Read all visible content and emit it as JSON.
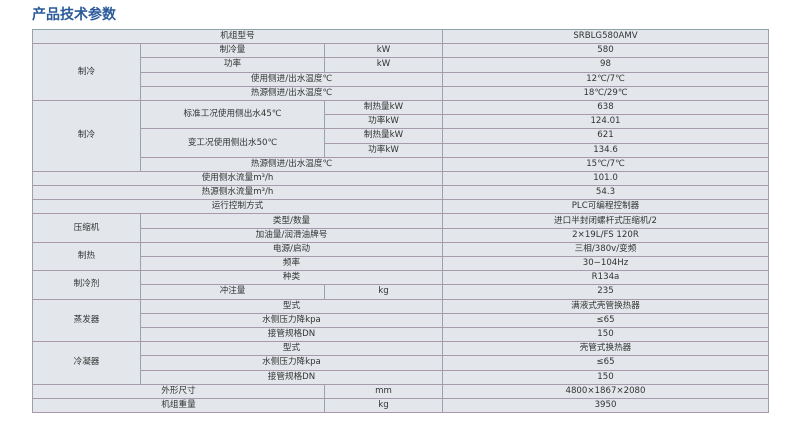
{
  "title": "产品技术参数",
  "rows": {
    "model": {
      "label": "机组型号",
      "value": "SRBLG580AMV"
    },
    "cooling": {
      "group": "制冷",
      "capacity": {
        "label": "制冷量",
        "unit": "kW",
        "value": "580"
      },
      "power": {
        "label": "功率",
        "unit": "kW",
        "value": "98"
      },
      "use_temp": {
        "label": "使用侧进/出水温度℃",
        "value": "12℃/7℃"
      },
      "src_temp": {
        "label": "热源侧进/出水温度℃",
        "value": "18℃/29℃"
      }
    },
    "heating": {
      "group": "制冷",
      "std": {
        "label": "标准工况使用侧出水45℃",
        "cap_label": "制热量kW",
        "cap": "638",
        "pow_label": "功率kW",
        "pow": "124.01"
      },
      "var": {
        "label": "变工况使用侧出水50℃",
        "cap_label": "制热量kW",
        "cap": "621",
        "pow_label": "功率kW",
        "pow": "134.6"
      },
      "src_temp": {
        "label": "热源侧进/出水温度℃",
        "value": "15℃/7℃"
      }
    },
    "use_flow": {
      "label": "使用侧水流量m³/h",
      "value": "101.0"
    },
    "src_flow": {
      "label": "热源侧水流量m³/h",
      "value": "54.3"
    },
    "control": {
      "label": "运行控制方式",
      "value": "PLC可编程控制器"
    },
    "compressor": {
      "group": "压缩机",
      "type": {
        "label": "类型/数量",
        "value": "进口半封闭螺杆式压缩机/2"
      },
      "oil": {
        "label": "加油量/润滑油牌号",
        "value": "2×19L/FS  120R"
      }
    },
    "power": {
      "group": "制热",
      "supply": {
        "label": "电源/启动",
        "value": "三相/380v/变频"
      },
      "freq": {
        "label": "频率",
        "value": "30−104Hz"
      }
    },
    "refrigerant": {
      "group": "制冷剂",
      "kind": {
        "label": "种类",
        "value": "R134a"
      },
      "charge": {
        "label": "冲注量",
        "unit": "kg",
        "value": "235"
      }
    },
    "evaporator": {
      "group": "蒸发器",
      "type": {
        "label": "型式",
        "value": "满液式壳管换热器"
      },
      "drop": {
        "label": "水侧压力降kpa",
        "value": "≤65"
      },
      "pipe": {
        "label": "接管规格DN",
        "value": "150"
      }
    },
    "condenser": {
      "group": "冷凝器",
      "type": {
        "label": "型式",
        "value": "壳管式换热器"
      },
      "drop": {
        "label": "水侧压力降kpa",
        "value": "≤65"
      },
      "pipe": {
        "label": "接管规格DN",
        "value": "150"
      }
    },
    "dimensions": {
      "label": "外形尺寸",
      "unit": "mm",
      "value": "4800×1867×2080"
    },
    "weight": {
      "label": "机组重量",
      "unit": "kg",
      "value": "3950"
    }
  }
}
